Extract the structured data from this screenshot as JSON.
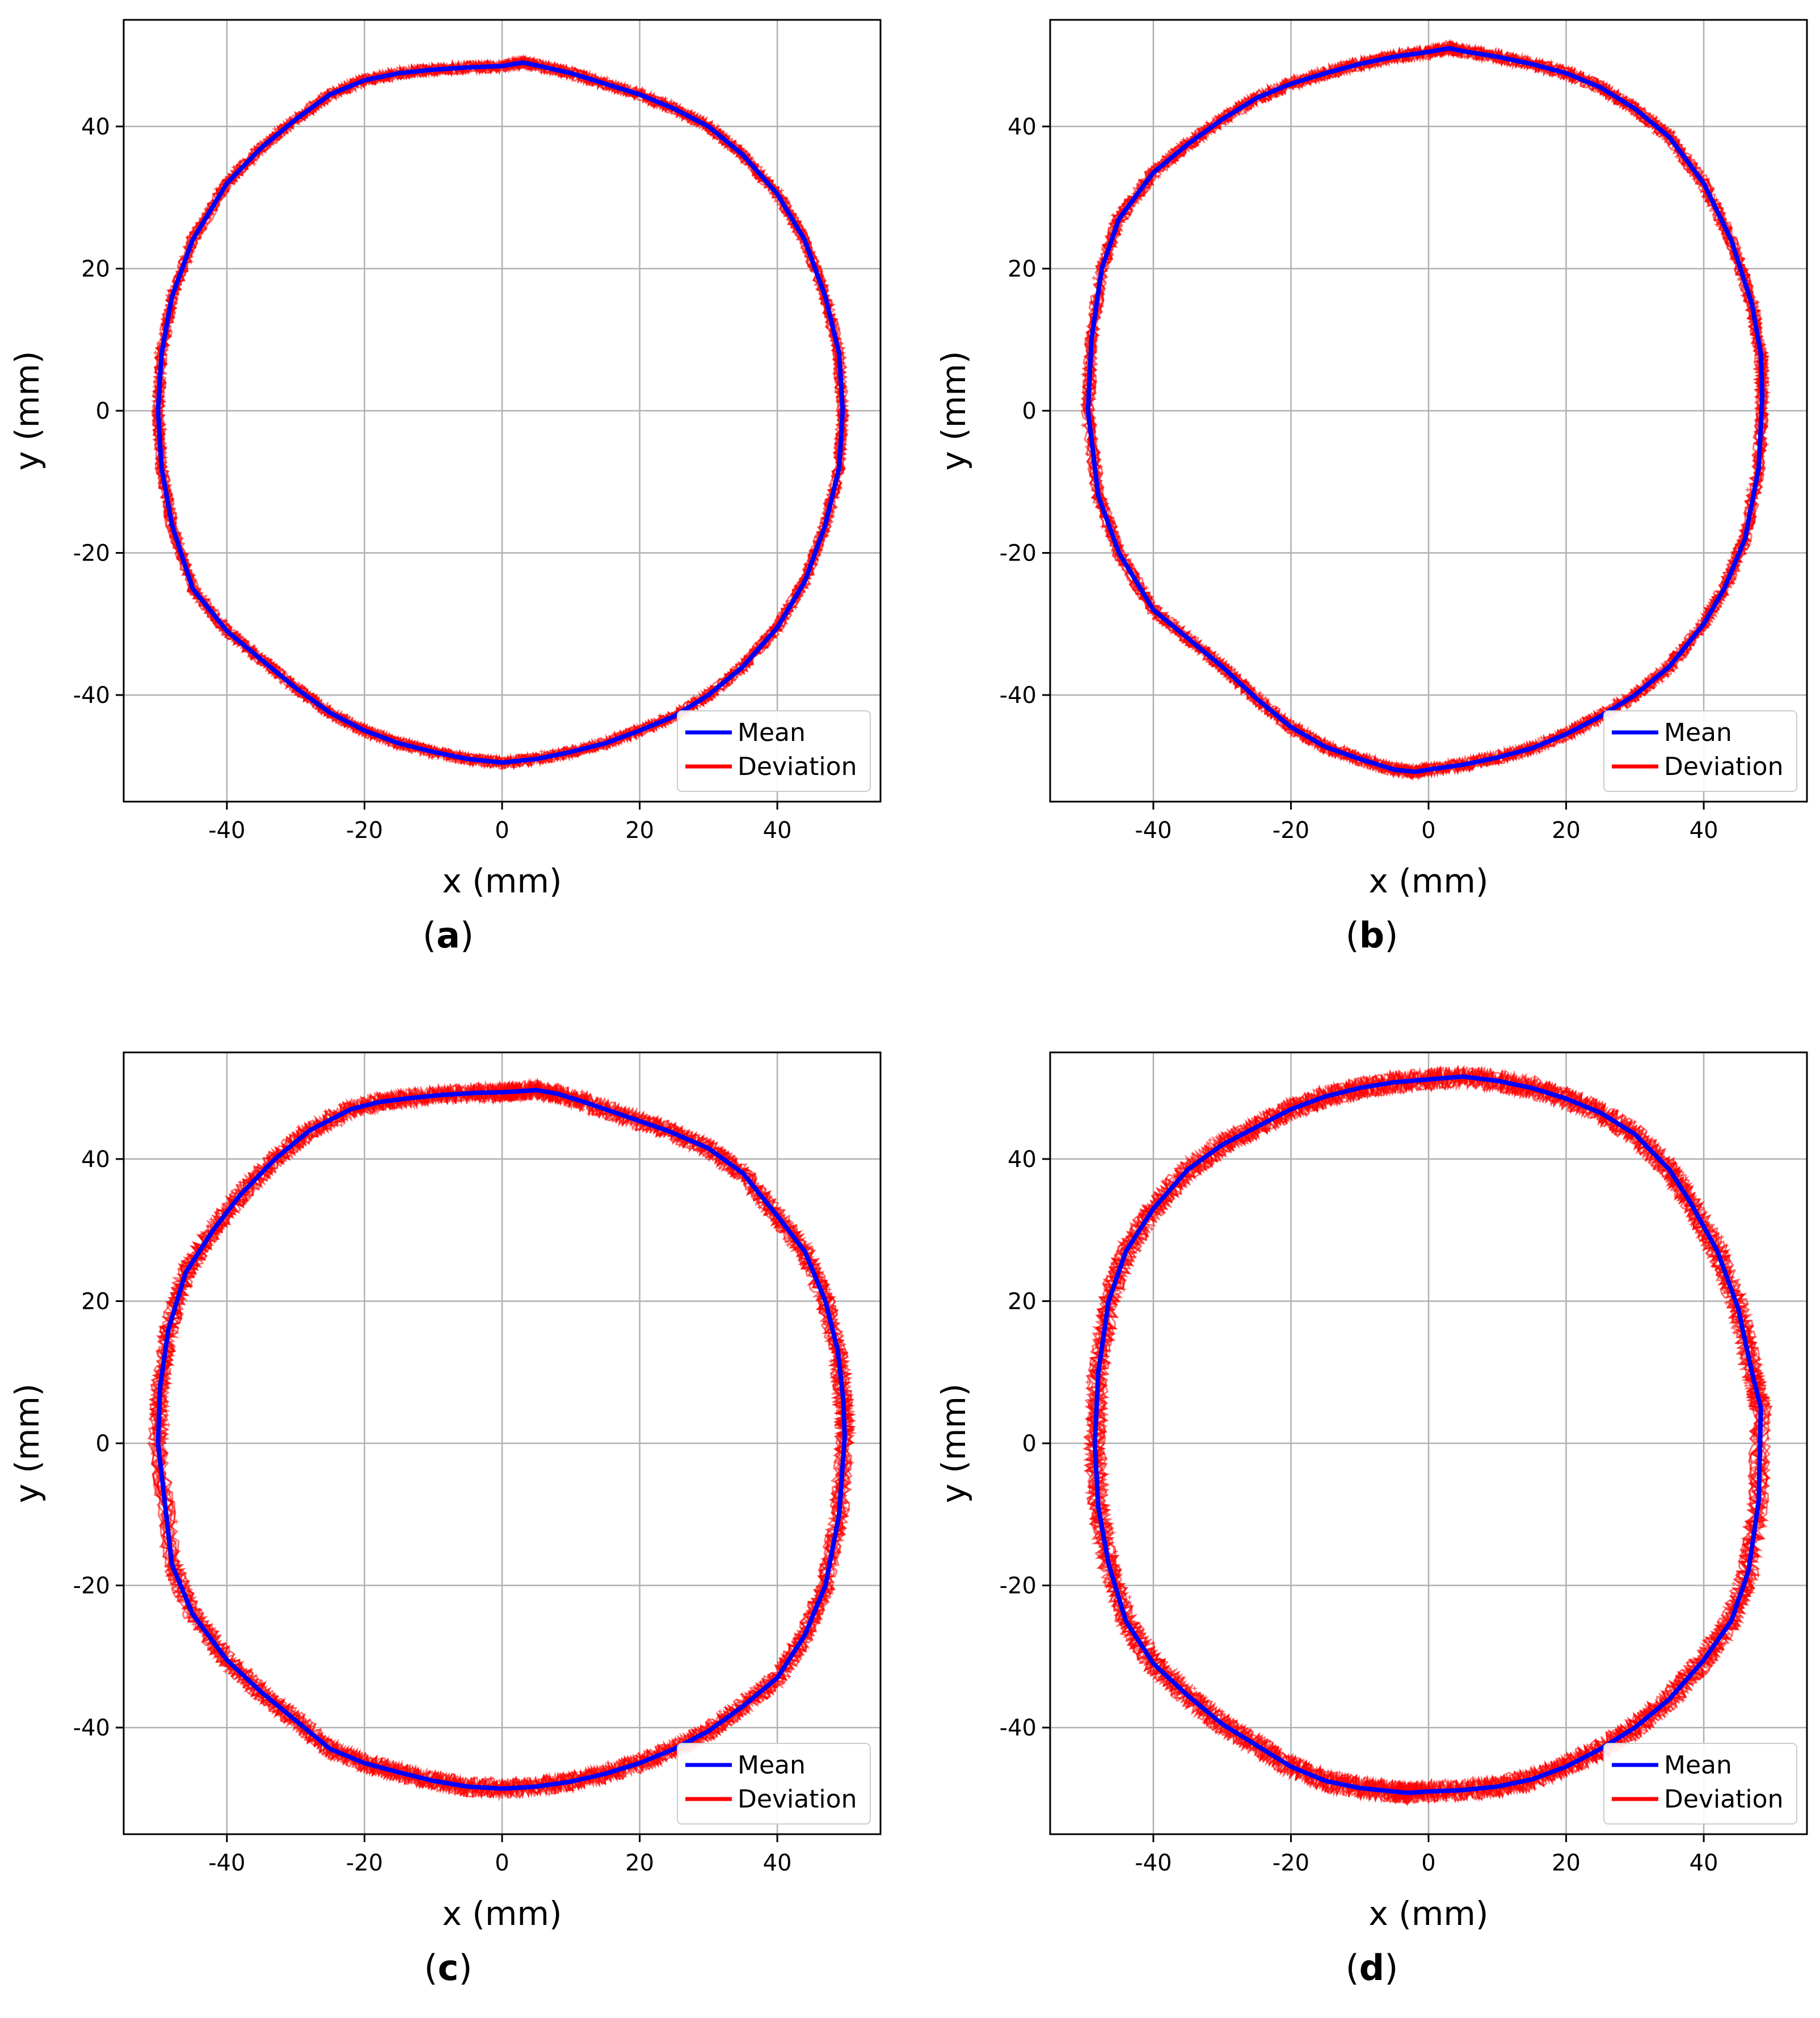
{
  "chart_data": [
    {
      "type": "line",
      "caption": {
        "open": "(",
        "letter": "a",
        "close": ")"
      },
      "xlabel": "x (mm)",
      "ylabel": "y (mm)",
      "xlim": [
        -55,
        55
      ],
      "ylim": [
        -55,
        55
      ],
      "xticks": [
        -40,
        -20,
        0,
        20,
        40
      ],
      "yticks": [
        -40,
        -20,
        0,
        20,
        40
      ],
      "xtick_labels": [
        "-40",
        "-20",
        "0",
        "20",
        "40"
      ],
      "ytick_labels": [
        "-40",
        "-20",
        "0",
        "20",
        "40"
      ],
      "grid": true,
      "legend_position": "bottom-right",
      "series": [
        {
          "name": "Mean",
          "color": "#0000ff",
          "x": [
            -50,
            -49.5,
            -48,
            -45,
            -40,
            -35,
            -30,
            -25,
            -20,
            -15,
            -10,
            -5,
            0,
            3,
            5,
            10,
            15,
            20,
            25,
            30,
            35,
            40,
            44,
            47,
            49,
            49.5,
            49,
            47,
            44,
            40,
            35,
            30,
            25,
            20,
            15,
            10,
            5,
            0,
            -5,
            -10,
            -15,
            -20,
            -25,
            -30,
            -35,
            -40,
            -45,
            -48,
            -49.5,
            -50
          ],
          "y": [
            0,
            8,
            16,
            24,
            32,
            37,
            41,
            44.5,
            46.5,
            47.5,
            48,
            48.3,
            48.5,
            49,
            48.6,
            47.5,
            46,
            44.5,
            42.5,
            40,
            36,
            30.5,
            24,
            16,
            8,
            0,
            -8,
            -16,
            -24,
            -30.5,
            -36,
            -40,
            -43,
            -45,
            -46.8,
            -48,
            -49,
            -49.5,
            -49,
            -48,
            -46.8,
            -45,
            -42.5,
            -39,
            -35,
            -31,
            -25,
            -16,
            -8,
            0
          ]
        },
        {
          "name": "Deviation",
          "color": "#ff0000",
          "spread": 0.9
        }
      ]
    },
    {
      "type": "line",
      "caption": {
        "open": "(",
        "letter": "b",
        "close": ")"
      },
      "xlabel": "x (mm)",
      "ylabel": "y (mm)",
      "xlim": [
        -55,
        55
      ],
      "ylim": [
        -55,
        55
      ],
      "xticks": [
        -40,
        -20,
        0,
        20,
        40
      ],
      "yticks": [
        -40,
        -20,
        0,
        20,
        40
      ],
      "xtick_labels": [
        "-40",
        "-20",
        "0",
        "20",
        "40"
      ],
      "ytick_labels": [
        "-40",
        "-20",
        "0",
        "20",
        "40"
      ],
      "grid": true,
      "legend_position": "bottom-right",
      "series": [
        {
          "name": "Mean",
          "color": "#0000ff",
          "x": [
            -49.5,
            -49,
            -47.5,
            -45,
            -40,
            -35,
            -30,
            -25,
            -20,
            -15,
            -10,
            -5,
            0,
            3,
            5,
            10,
            15,
            20,
            25,
            30,
            35,
            40,
            44,
            47,
            48.3,
            48.5,
            48,
            46,
            43,
            40,
            35,
            30,
            25,
            20,
            15,
            10,
            5,
            0,
            -2,
            -5,
            -10,
            -15,
            -20,
            -25,
            -30,
            -35,
            -40,
            -45,
            -48,
            -49.5
          ],
          "y": [
            0,
            10,
            20,
            27,
            33.5,
            37.5,
            41,
            44,
            46,
            47.5,
            48.8,
            49.8,
            50.5,
            51,
            50.6,
            49.8,
            48.8,
            47.5,
            45.5,
            42.5,
            38.5,
            32,
            24,
            15,
            8,
            2,
            -8,
            -18,
            -25,
            -30,
            -36,
            -40,
            -43,
            -45.5,
            -47.5,
            -48.8,
            -49.8,
            -50.5,
            -50.8,
            -50.5,
            -49,
            -47.3,
            -44.5,
            -40.5,
            -36,
            -32,
            -28,
            -20,
            -12,
            0
          ]
        },
        {
          "name": "Deviation",
          "color": "#ff0000",
          "spread": 1.0
        }
      ]
    },
    {
      "type": "line",
      "caption": {
        "open": "(",
        "letter": "c",
        "close": ")"
      },
      "xlabel": "x (mm)",
      "ylabel": "y (mm)",
      "xlim": [
        -55,
        55
      ],
      "ylim": [
        -55,
        55
      ],
      "xticks": [
        -40,
        -20,
        0,
        20,
        40
      ],
      "yticks": [
        -40,
        -20,
        0,
        20,
        40
      ],
      "xtick_labels": [
        "-40",
        "-20",
        "0",
        "20",
        "40"
      ],
      "ytick_labels": [
        "-40",
        "-20",
        "0",
        "20",
        "40"
      ],
      "grid": true,
      "legend_position": "bottom-right",
      "series": [
        {
          "name": "Mean",
          "color": "#0000ff",
          "x": [
            -50,
            -49.7,
            -48.5,
            -46,
            -42,
            -38,
            -33,
            -28,
            -22,
            -18,
            -14,
            -9,
            -4,
            0,
            2,
            5,
            8,
            12,
            18,
            24,
            30,
            35,
            40,
            44,
            47,
            48.8,
            49.6,
            49.8,
            49,
            47,
            44,
            40,
            35,
            30,
            25,
            20,
            15,
            10,
            5,
            0,
            -5,
            -10,
            -15,
            -20,
            -25,
            -30,
            -35,
            -40,
            -45,
            -48,
            -50
          ],
          "y": [
            0,
            8,
            16,
            24,
            30,
            35,
            40,
            44,
            47,
            48,
            48.5,
            49,
            49.3,
            49.4,
            49.5,
            49.7,
            49.2,
            48,
            46,
            44,
            41.5,
            38,
            32,
            27,
            20,
            13,
            6,
            1,
            -10,
            -20,
            -27,
            -33,
            -37,
            -40.5,
            -43,
            -45,
            -46.5,
            -47.6,
            -48.3,
            -48.6,
            -48.3,
            -47.5,
            -46.3,
            -45,
            -43,
            -39,
            -35,
            -30.5,
            -24,
            -17,
            0
          ]
        },
        {
          "name": "Deviation",
          "color": "#ff0000",
          "spread": 1.4
        }
      ]
    },
    {
      "type": "line",
      "caption": {
        "open": "(",
        "letter": "d",
        "close": ")"
      },
      "xlabel": "x (mm)",
      "ylabel": "y (mm)",
      "xlim": [
        -55,
        55
      ],
      "ylim": [
        -55,
        55
      ],
      "xticks": [
        -40,
        -20,
        0,
        20,
        40
      ],
      "yticks": [
        -40,
        -20,
        0,
        20,
        40
      ],
      "xtick_labels": [
        "-40",
        "-20",
        "0",
        "20",
        "40"
      ],
      "ytick_labels": [
        "-40",
        "-20",
        "0",
        "20",
        "40"
      ],
      "grid": true,
      "legend_position": "bottom-right",
      "series": [
        {
          "name": "Mean",
          "color": "#0000ff",
          "x": [
            -48.5,
            -48,
            -46.5,
            -44,
            -40,
            -35,
            -30,
            -25,
            -20,
            -15,
            -10,
            -5,
            0,
            5,
            10,
            15,
            20,
            25,
            30,
            35,
            38,
            42,
            45,
            47,
            48.3,
            48,
            46.5,
            44,
            40,
            35,
            30,
            25,
            20,
            15,
            10,
            5,
            0,
            -3,
            -5,
            -10,
            -15,
            -20,
            -25,
            -30,
            -35,
            -40,
            -44,
            -46.5,
            -48,
            -48.5
          ],
          "y": [
            0,
            10,
            20,
            27,
            33,
            38.5,
            42,
            44.5,
            47,
            48.8,
            50,
            50.8,
            51.2,
            51.6,
            51,
            50,
            48.5,
            46.5,
            43.5,
            38.5,
            34,
            27,
            19,
            10,
            5,
            -8,
            -18,
            -25,
            -30.5,
            -36,
            -40,
            -43,
            -45.5,
            -47.3,
            -48.3,
            -48.8,
            -49,
            -49.2,
            -49,
            -48.5,
            -47.5,
            -45.5,
            -42.5,
            -39.5,
            -35.5,
            -31,
            -25,
            -17,
            -9,
            0
          ]
        },
        {
          "name": "Deviation",
          "color": "#ff0000",
          "spread": 1.6
        }
      ]
    }
  ]
}
